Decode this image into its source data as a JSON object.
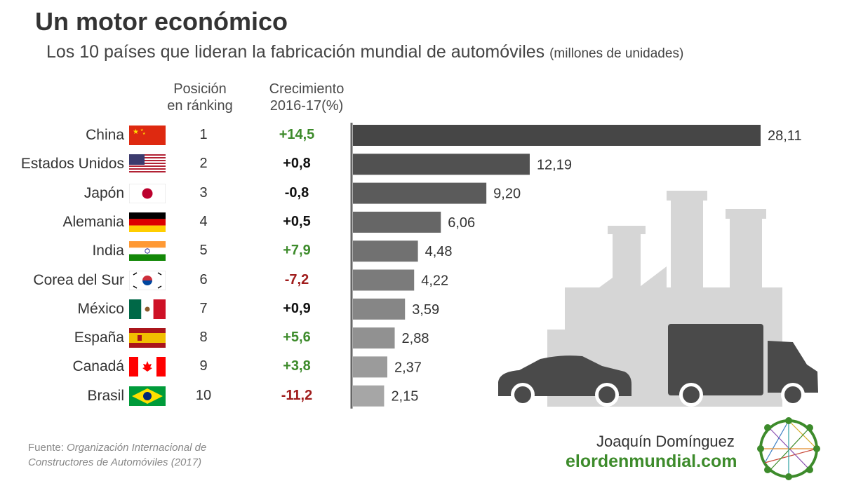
{
  "header": {
    "title": "Un motor económico",
    "subtitle": "Los 10 países que lideran la fabricación mundial de automóviles",
    "unit": "(millones de unidades)"
  },
  "columns": {
    "rank": [
      "Posición",
      "en ránking"
    ],
    "growth": [
      "Crecimiento",
      "2016-17(%)"
    ]
  },
  "colors": {
    "positive_growth": "#3d8b2b",
    "negative_growth": "#a01c1c",
    "neutral_growth": "#111111",
    "bar_darkest": "#464646",
    "bar_lightest": "#a6a6a6",
    "illustration": "#d6d6d6",
    "vehicles": "#4a4a4a"
  },
  "chart_data": {
    "type": "bar",
    "orientation": "horizontal",
    "title": "Un motor económico",
    "subtitle": "Los 10 países que lideran la fabricación mundial de automóviles",
    "unit": "(millones de unidades)",
    "categories": [
      "China",
      "Estados Unidos",
      "Japón",
      "Alemania",
      "India",
      "Corea del Sur",
      "México",
      "España",
      "Canadá",
      "Brasil"
    ],
    "values": [
      28.11,
      12.19,
      9.2,
      6.06,
      4.48,
      4.22,
      3.59,
      2.88,
      2.37,
      2.15
    ],
    "value_labels": [
      "28,11",
      "12,19",
      "9,20",
      "6,06",
      "4,48",
      "4,22",
      "3,59",
      "2,88",
      "2,37",
      "2,15"
    ],
    "xlim": [
      0,
      28.11
    ],
    "grid": false,
    "legend": "none"
  },
  "rows": [
    {
      "country": "China",
      "flag": "china-flag-icon",
      "rank": "1",
      "growth": "+14,5",
      "tone": "pos"
    },
    {
      "country": "Estados Unidos",
      "flag": "usa-flag-icon",
      "rank": "2",
      "growth": "+0,8",
      "tone": "neu"
    },
    {
      "country": "Japón",
      "flag": "japan-flag-icon",
      "rank": "3",
      "growth": "-0,8",
      "tone": "neu"
    },
    {
      "country": "Alemania",
      "flag": "germany-flag-icon",
      "rank": "4",
      "growth": "+0,5",
      "tone": "neu"
    },
    {
      "country": "India",
      "flag": "india-flag-icon",
      "rank": "5",
      "growth": "+7,9",
      "tone": "pos"
    },
    {
      "country": "Corea del Sur",
      "flag": "south-korea-flag-icon",
      "rank": "6",
      "growth": "-7,2",
      "tone": "neg"
    },
    {
      "country": "México",
      "flag": "mexico-flag-icon",
      "rank": "7",
      "growth": "+0,9",
      "tone": "neu"
    },
    {
      "country": "España",
      "flag": "spain-flag-icon",
      "rank": "8",
      "growth": "+5,6",
      "tone": "pos"
    },
    {
      "country": "Canadá",
      "flag": "canada-flag-icon",
      "rank": "9",
      "growth": "+3,8",
      "tone": "pos"
    },
    {
      "country": "Brasil",
      "flag": "brazil-flag-icon",
      "rank": "10",
      "growth": "-11,2",
      "tone": "neg"
    }
  ],
  "footer": {
    "source_prefix": "Fuente:",
    "source_line1": "Organización Internacional de",
    "source_line2": "Constructores de Automóviles (2017)",
    "author": "Joaquín Domínguez",
    "site": "elordenmundial.com"
  }
}
